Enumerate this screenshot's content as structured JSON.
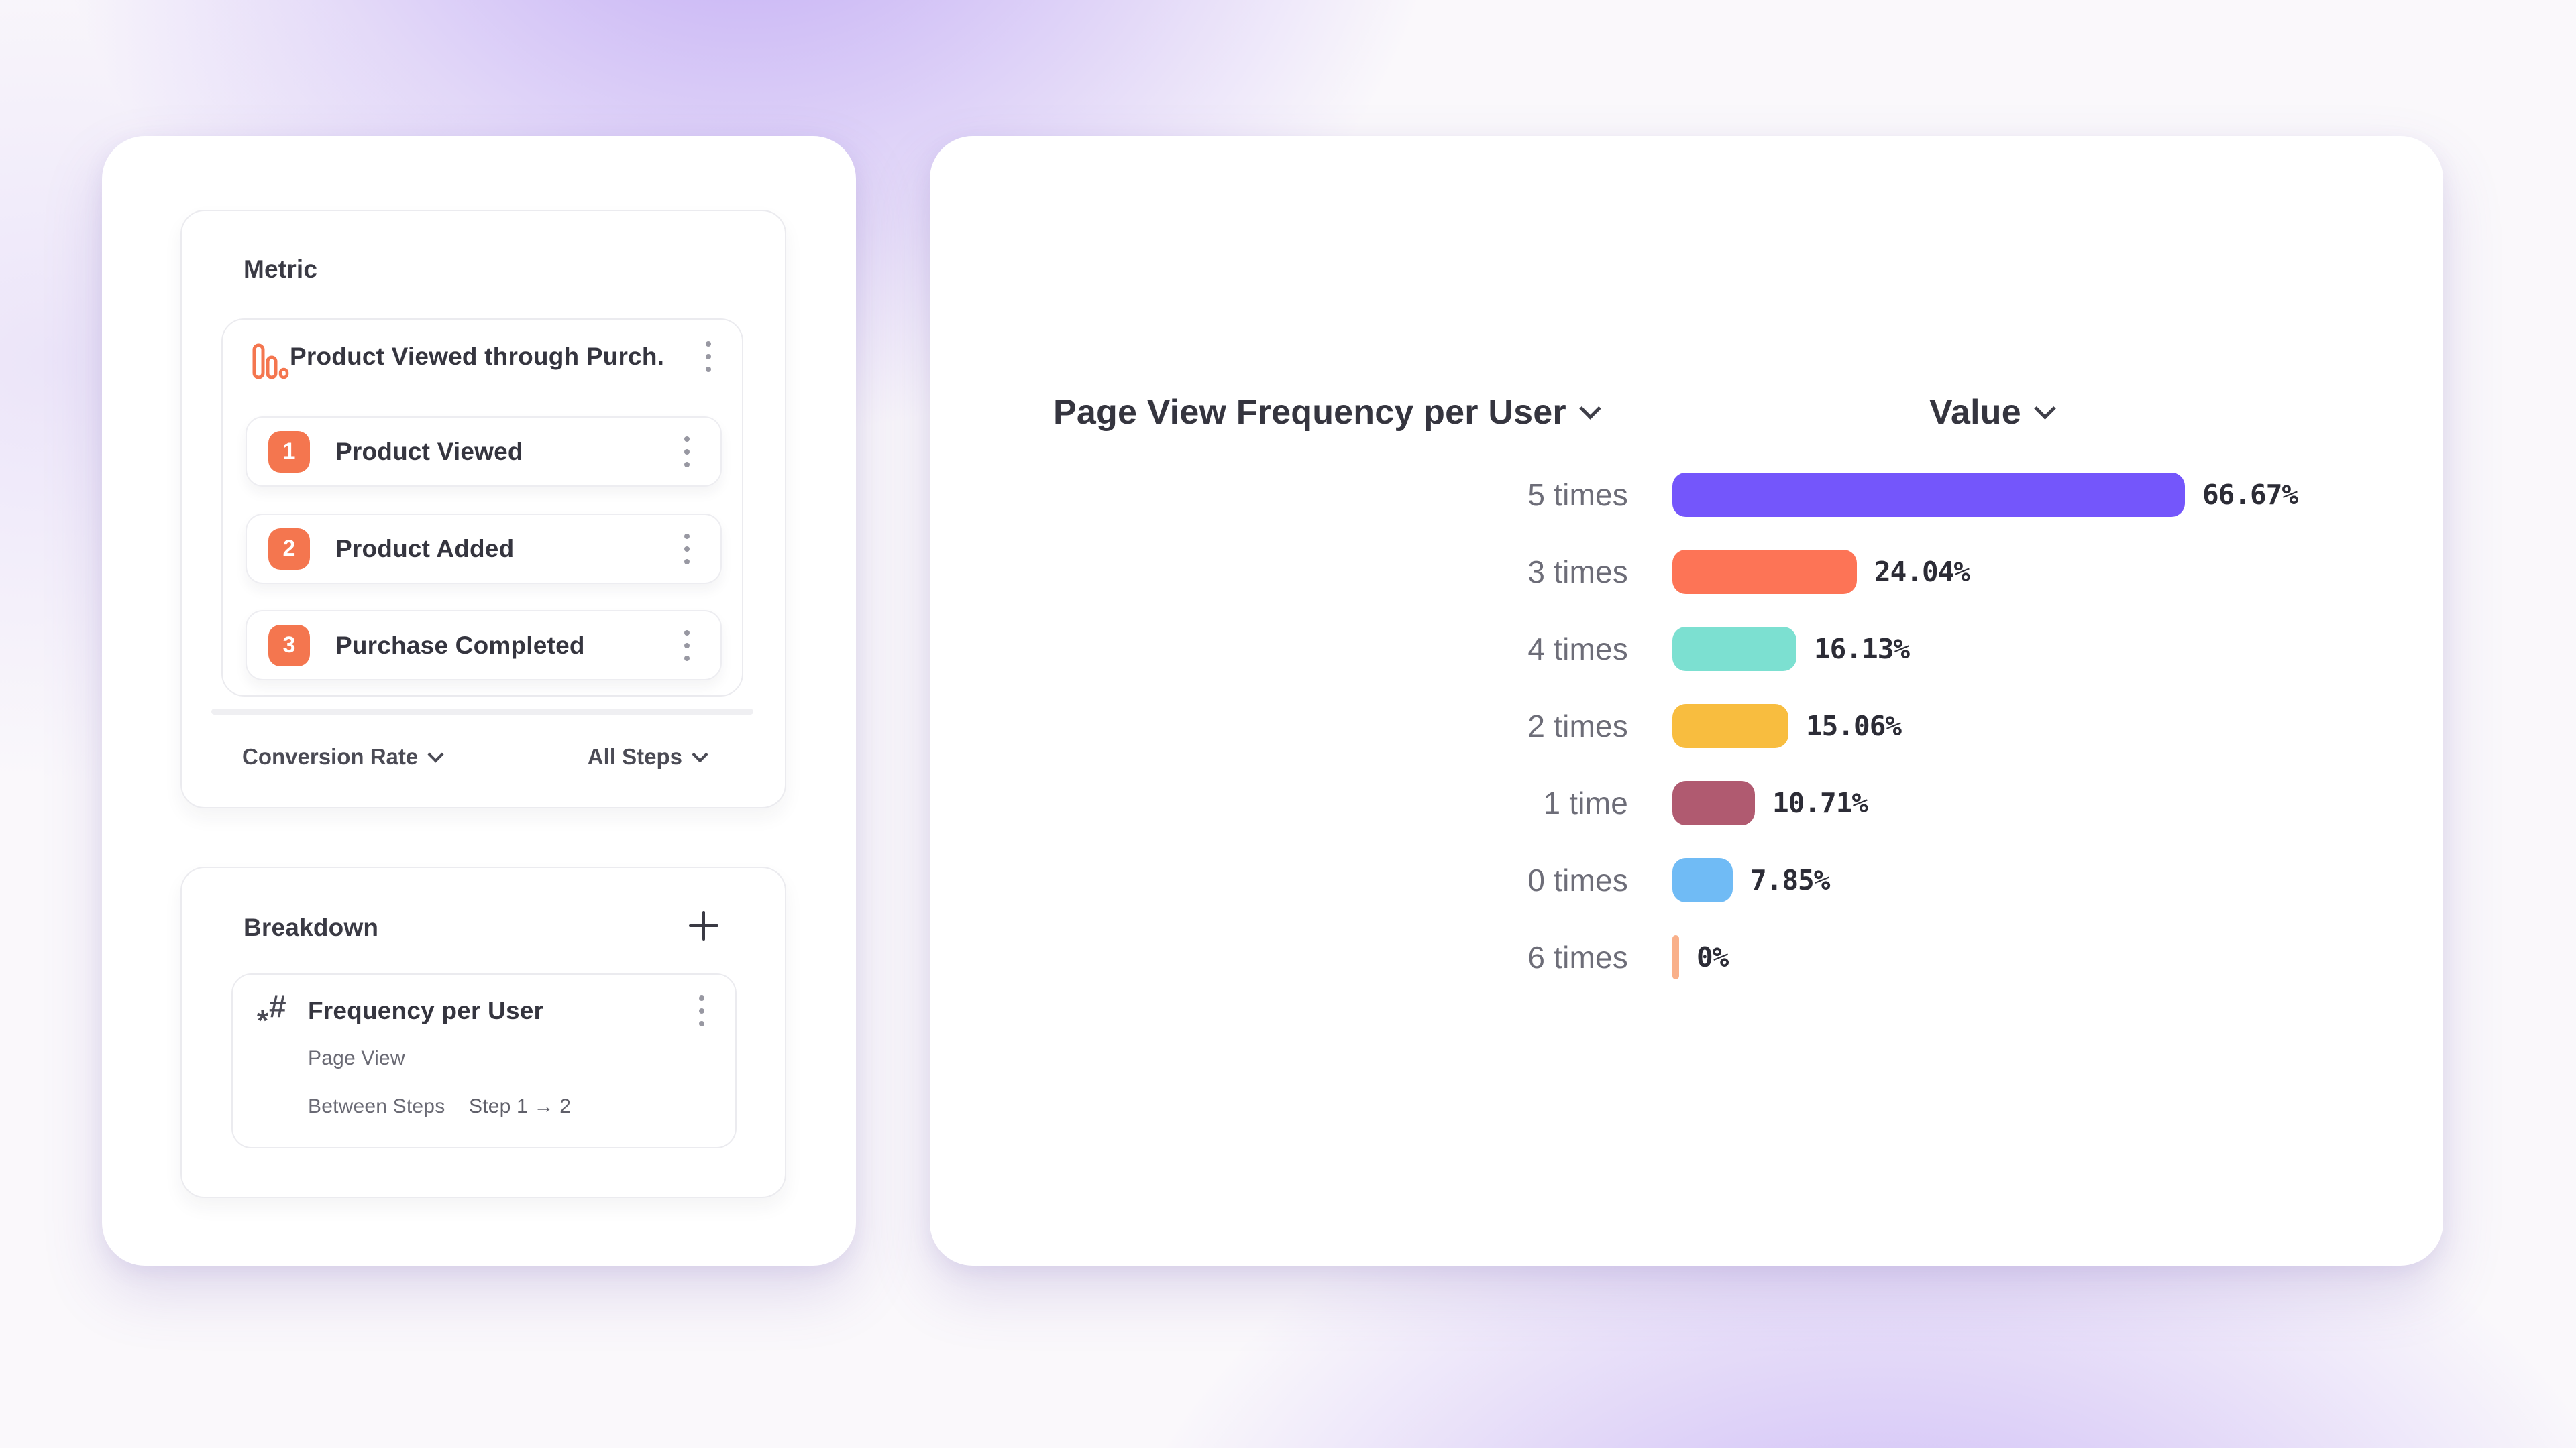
{
  "colors": {
    "accent_background": "#8B61EE",
    "badge_orange": "#F4764F",
    "panel_border": "#ebebef",
    "text_dark": "#35353f",
    "text_gray": "#6d6d78"
  },
  "icons": {
    "metric_header": "funnel-bars-icon",
    "step_menu": "kebab-menu-icon",
    "breakdown_add": "plus-icon",
    "breakdown_property": "hash-asterisk-icon",
    "dropdown": "chevron-down-icon"
  },
  "left_panel": {
    "metric": {
      "title": "Metric",
      "funnel": {
        "name": "Product Viewed through Purch...",
        "steps": [
          {
            "number": "1",
            "label": "Product Viewed"
          },
          {
            "number": "2",
            "label": "Product Added"
          },
          {
            "number": "3",
            "label": "Purchase Completed"
          }
        ]
      },
      "footer": {
        "left_dropdown": "Conversion Rate",
        "right_dropdown": "All Steps"
      }
    },
    "breakdown": {
      "title": "Breakdown",
      "item": {
        "title": "Frequency per User",
        "event": "Page View",
        "scope_label": "Between Steps",
        "scope_value": "Step 1 → 2"
      }
    }
  },
  "chart_data": {
    "type": "bar",
    "orientation": "horizontal",
    "title": "Page View Frequency per User",
    "value_header": "Value",
    "categories": [
      "5 times",
      "3 times",
      "4 times",
      "2 times",
      "1 time",
      "0 times",
      "6 times"
    ],
    "values": [
      66.67,
      24.04,
      16.13,
      15.06,
      10.71,
      7.85,
      0
    ],
    "value_labels": [
      "66.67%",
      "24.04%",
      "16.13%",
      "15.06%",
      "10.71%",
      "7.85%",
      "0%"
    ],
    "bar_colors": [
      "#7456FB",
      "#FD7456",
      "#7CE0D1",
      "#F8BD3F",
      "#B05A70",
      "#70BBF5",
      "#F9B08A"
    ],
    "xlim": [
      0,
      100
    ],
    "sorted": "descending",
    "grid": false,
    "legend": false
  }
}
